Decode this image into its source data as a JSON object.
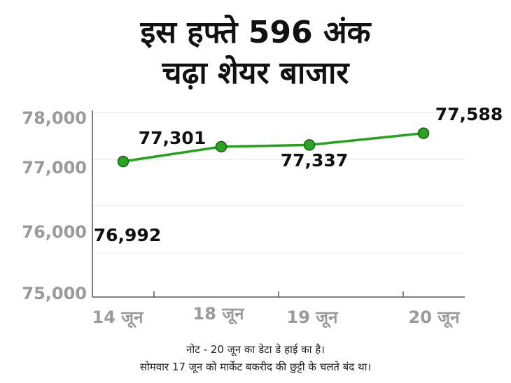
{
  "title": {
    "line1": "इस हफ्ते 596 अंक",
    "line2": "चढ़ा शेयर बाजार"
  },
  "note": {
    "line1": "नोट - 20 जून का डेटा डे हाई का है।",
    "line2": "सोमवार 17 जून को मार्केट बकरीद की छुट्टी के चलते बंद था।"
  },
  "colors": {
    "line": "#22a31a",
    "marker": "#2aa320",
    "marker_edge": "#1a5e14",
    "tick_text": "#9a9a9a",
    "label_text": "#111111"
  },
  "chart_data": {
    "type": "line",
    "categories": [
      "14 जून",
      "18 जून",
      "19 जून",
      "20 जून"
    ],
    "values": [
      76992,
      77301,
      77337,
      77588
    ],
    "data_labels": [
      "76,992",
      "77,301",
      "77,337",
      "77,588"
    ],
    "y_ticks": [
      75000,
      76000,
      77000,
      78000
    ],
    "y_tick_labels": [
      "75,000",
      "76,000",
      "77,000",
      "78,000"
    ],
    "grid": true,
    "legend": "none"
  }
}
